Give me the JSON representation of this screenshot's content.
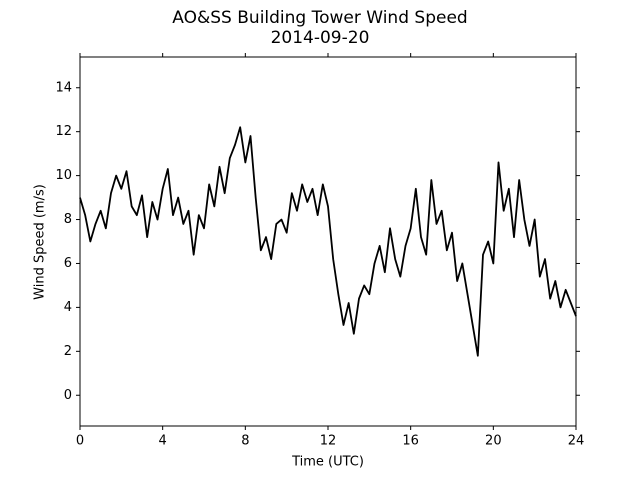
{
  "chart_data": {
    "type": "line",
    "title": "AO&SS Building Tower Wind Speed",
    "subtitle": "2014-09-20",
    "x_label": "Time (UTC)",
    "y_label": "Wind Speed (m/s)",
    "color": "#000000",
    "grid": false,
    "xlim": [
      0,
      24
    ],
    "xticks": [
      0,
      4,
      8,
      12,
      16,
      20,
      24
    ],
    "ylim": [
      -1.4,
      15.4
    ],
    "yticks": [
      0,
      2,
      4,
      6,
      8,
      10,
      12,
      14
    ],
    "x": [
      0,
      0.25,
      0.5,
      0.75,
      1,
      1.25,
      1.5,
      1.75,
      2,
      2.25,
      2.5,
      2.75,
      3,
      3.25,
      3.5,
      3.75,
      4,
      4.25,
      4.5,
      4.75,
      5,
      5.25,
      5.5,
      5.75,
      6,
      6.25,
      6.5,
      6.75,
      7,
      7.25,
      7.5,
      7.75,
      8,
      8.25,
      8.5,
      8.75,
      9,
      9.25,
      9.5,
      9.75,
      10,
      10.25,
      10.5,
      10.75,
      11,
      11.25,
      11.5,
      11.75,
      12,
      12.25,
      12.5,
      12.75,
      13,
      13.25,
      13.5,
      13.75,
      14,
      14.25,
      14.5,
      14.75,
      15,
      15.25,
      15.5,
      15.75,
      16,
      16.25,
      16.5,
      16.75,
      17,
      17.25,
      17.5,
      17.75,
      18,
      18.25,
      18.5,
      18.75,
      19,
      19.25,
      19.5,
      19.75,
      20,
      20.25,
      20.5,
      20.75,
      21,
      21.25,
      21.5,
      21.75,
      22,
      22.25,
      22.5,
      22.75,
      23,
      23.25,
      23.5,
      23.75,
      24
    ],
    "values": [
      9.0,
      8.2,
      7.0,
      7.8,
      8.4,
      7.6,
      9.2,
      10.0,
      9.4,
      10.2,
      8.6,
      8.2,
      9.1,
      7.2,
      8.8,
      8.0,
      9.4,
      10.3,
      8.2,
      9.0,
      7.8,
      8.4,
      6.4,
      8.2,
      7.6,
      9.6,
      8.6,
      10.4,
      9.2,
      10.8,
      11.4,
      12.2,
      10.6,
      11.8,
      9.0,
      6.6,
      7.2,
      6.2,
      7.8,
      8.0,
      7.4,
      9.2,
      8.4,
      9.6,
      8.8,
      9.4,
      8.2,
      9.6,
      8.6,
      6.2,
      4.6,
      3.2,
      4.2,
      2.8,
      4.4,
      5.0,
      4.6,
      6.0,
      6.8,
      5.6,
      7.6,
      6.2,
      5.4,
      6.8,
      7.6,
      9.4,
      7.2,
      6.4,
      9.8,
      7.8,
      8.4,
      6.6,
      7.4,
      5.2,
      6.0,
      4.6,
      3.2,
      1.8,
      6.4,
      7.0,
      6.0,
      10.6,
      8.4,
      9.4,
      7.2,
      9.8,
      8.0,
      6.8,
      8.0,
      5.4,
      6.2,
      4.4,
      5.2,
      4.0,
      4.8,
      4.2,
      3.6
    ]
  }
}
